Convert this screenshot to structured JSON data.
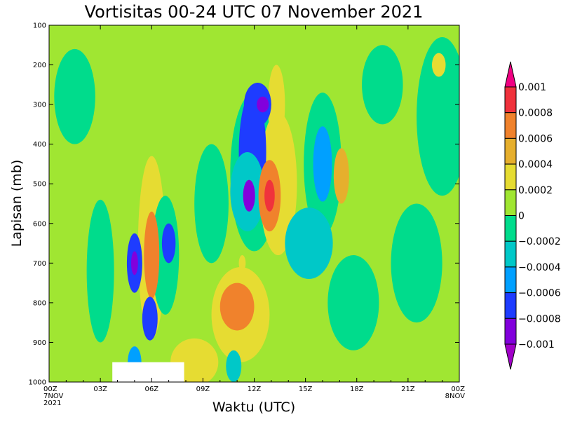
{
  "chart_data": {
    "type": "heatmap",
    "title": "Vortisitas 00-24 UTC 07 November 2021",
    "xlabel": "Waktu (UTC)",
    "ylabel": "Lapisan (mb)",
    "x_ticks": [
      {
        "hour": 0,
        "label": "00Z",
        "sub": [
          "7NOV",
          "2021"
        ]
      },
      {
        "hour": 3,
        "label": "03Z",
        "sub": []
      },
      {
        "hour": 6,
        "label": "06Z",
        "sub": []
      },
      {
        "hour": 9,
        "label": "09Z",
        "sub": []
      },
      {
        "hour": 12,
        "label": "12Z",
        "sub": []
      },
      {
        "hour": 15,
        "label": "15Z",
        "sub": []
      },
      {
        "hour": 18,
        "label": "18Z",
        "sub": []
      },
      {
        "hour": 21,
        "label": "21Z",
        "sub": []
      },
      {
        "hour": 24,
        "label": "00Z",
        "sub": [
          "8NOV"
        ]
      }
    ],
    "y_ticks": [
      100,
      200,
      300,
      400,
      500,
      600,
      700,
      800,
      900,
      1000
    ],
    "xlim": [
      0,
      24
    ],
    "ylim": [
      1000,
      100
    ],
    "background_level": 0,
    "colorbar": {
      "levels": [
        {
          "min": 0.0008,
          "max": 0.001,
          "color": "#f0323c"
        },
        {
          "min": 0.0006,
          "max": 0.0008,
          "color": "#f0822c"
        },
        {
          "min": 0.0004,
          "max": 0.0006,
          "color": "#e6af2d"
        },
        {
          "min": 0.0002,
          "max": 0.0004,
          "color": "#e6dc32"
        },
        {
          "min": 0,
          "max": 0.0002,
          "color": "#a0e632"
        },
        {
          "min": -0.0002,
          "max": 0,
          "color": "#00dc8c"
        },
        {
          "min": -0.0004,
          "max": -0.0002,
          "color": "#00c8c8"
        },
        {
          "min": -0.0006,
          "max": -0.0004,
          "color": "#00a0ff"
        },
        {
          "min": -0.0008,
          "max": -0.0006,
          "color": "#1e3cff"
        },
        {
          "min": -0.001,
          "max": -0.0008,
          "color": "#8200dc"
        }
      ],
      "upper_extend_color": "#f00082",
      "lower_extend_color": "#a000c8",
      "labels": [
        "0.001",
        "0.0008",
        "0.0006",
        "0.0004",
        "0.0002",
        "0",
        "−0.0002",
        "−0.0004",
        "−0.0006",
        "−0.0008",
        "−0.001"
      ]
    },
    "features": [
      {
        "hour": 12.2,
        "p": 300,
        "rh": 0.8,
        "rp": 55,
        "v": -0.0007
      },
      {
        "hour": 12.5,
        "p": 300,
        "rh": 0.35,
        "rp": 20,
        "v": -0.0009
      },
      {
        "hour": 11.9,
        "p": 420,
        "rh": 0.8,
        "rp": 150,
        "v": -0.0008
      },
      {
        "hour": 11.7,
        "p": 530,
        "rh": 0.35,
        "rp": 40,
        "v": -0.0009
      },
      {
        "hour": 11.6,
        "p": 520,
        "rh": 1.0,
        "rp": 100,
        "v": -0.0004
      },
      {
        "hour": 12.0,
        "p": 470,
        "rh": 1.4,
        "rp": 200,
        "v": -0.0002
      },
      {
        "hour": 12.9,
        "p": 530,
        "rh": 0.65,
        "rp": 90,
        "v": 0.0007
      },
      {
        "hour": 12.9,
        "p": 530,
        "rh": 0.3,
        "rp": 40,
        "v": 0.0009
      },
      {
        "hour": 13.3,
        "p": 300,
        "rh": 0.5,
        "rp": 100,
        "v": 0.0003
      },
      {
        "hour": 13.4,
        "p": 500,
        "rh": 1.1,
        "rp": 180,
        "v": 0.0003
      },
      {
        "hour": 16.0,
        "p": 450,
        "rh": 0.55,
        "rp": 95,
        "v": -0.0005
      },
      {
        "hour": 16.0,
        "p": 450,
        "rh": 1.1,
        "rp": 180,
        "v": -0.0002
      },
      {
        "hour": 17.1,
        "p": 480,
        "rh": 0.45,
        "rp": 70,
        "v": 0.0004
      },
      {
        "hour": 15.2,
        "p": 650,
        "rh": 1.4,
        "rp": 90,
        "v": -0.0003
      },
      {
        "hour": 5.0,
        "p": 700,
        "rh": 0.45,
        "rp": 75,
        "v": -0.0007
      },
      {
        "hour": 5.0,
        "p": 700,
        "rh": 0.2,
        "rp": 30,
        "v": -0.0009
      },
      {
        "hour": 6.0,
        "p": 680,
        "rh": 0.45,
        "rp": 110,
        "v": 0.0006
      },
      {
        "hour": 6.0,
        "p": 660,
        "rh": 0.8,
        "rp": 230,
        "v": 0.0003
      },
      {
        "hour": 7.0,
        "p": 650,
        "rh": 0.4,
        "rp": 50,
        "v": -0.0007
      },
      {
        "hour": 6.8,
        "p": 680,
        "rh": 0.8,
        "rp": 150,
        "v": -0.0002
      },
      {
        "hour": 5.9,
        "p": 840,
        "rh": 0.45,
        "rp": 55,
        "v": -0.0008
      },
      {
        "hour": 5.0,
        "p": 950,
        "rh": 0.4,
        "rp": 40,
        "v": -0.0006
      },
      {
        "hour": 11.0,
        "p": 810,
        "rh": 1.0,
        "rp": 60,
        "v": 0.0007
      },
      {
        "hour": 11.2,
        "p": 830,
        "rh": 1.7,
        "rp": 120,
        "v": 0.0003
      },
      {
        "hour": 8.5,
        "p": 950,
        "rh": 1.4,
        "rp": 60,
        "v": 0.0002
      },
      {
        "hour": 10.8,
        "p": 960,
        "rh": 0.45,
        "rp": 40,
        "v": -0.0004
      },
      {
        "hour": 3.0,
        "p": 720,
        "rh": 0.8,
        "rp": 180,
        "v": -0.0002
      },
      {
        "hour": 1.5,
        "p": 280,
        "rh": 1.2,
        "rp": 120,
        "v": -0.0002
      },
      {
        "hour": 23.0,
        "p": 330,
        "rh": 1.5,
        "rp": 200,
        "v": -0.0002
      },
      {
        "hour": 21.5,
        "p": 700,
        "rh": 1.5,
        "rp": 150,
        "v": -0.0002
      },
      {
        "hour": 19.5,
        "p": 250,
        "rh": 1.2,
        "rp": 100,
        "v": -0.0002
      },
      {
        "hour": 9.5,
        "p": 550,
        "rh": 1.0,
        "rp": 150,
        "v": -0.0001
      },
      {
        "hour": 17.8,
        "p": 800,
        "rh": 1.5,
        "rp": 120,
        "v": -0.0002
      },
      {
        "hour": 22.8,
        "p": 200,
        "rh": 0.4,
        "rp": 30,
        "v": 0.0003
      },
      {
        "hour": 11.3,
        "p": 700,
        "rh": 0.2,
        "rp": 20,
        "v": 0.0003
      }
    ],
    "masked_region": {
      "hour_start": 3.7,
      "hour_end": 7.9,
      "p_start": 950,
      "p_end": 1000
    }
  }
}
